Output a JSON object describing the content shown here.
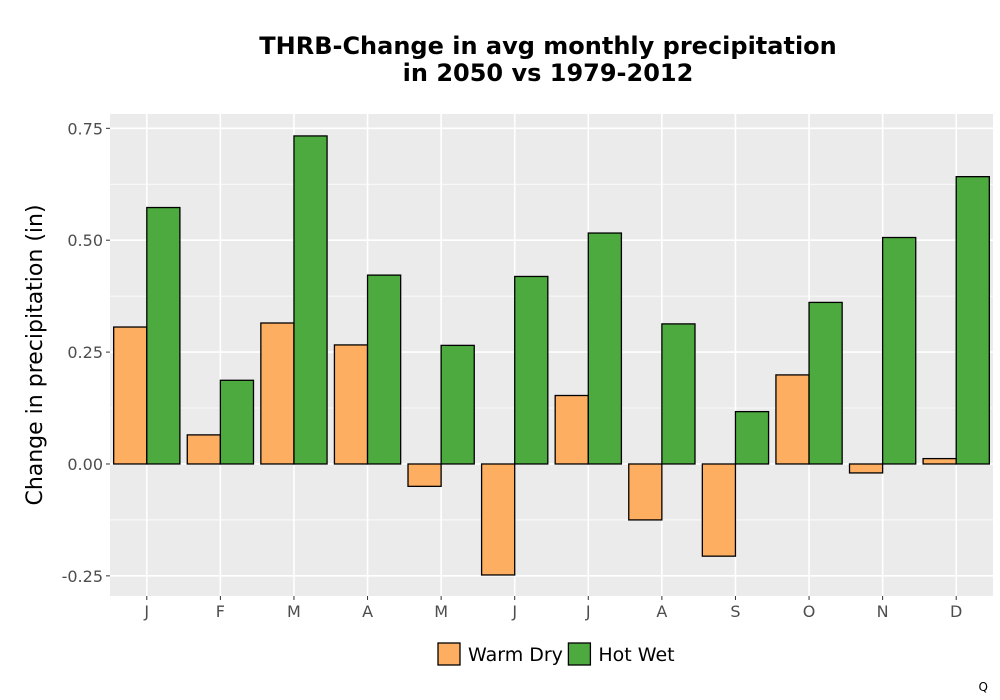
{
  "chart_data": {
    "type": "bar",
    "title_lines": [
      "THRB-Change in avg monthly precipitation",
      "in 2050 vs 1979-2012"
    ],
    "ylabel": "Change in precipitation (in)",
    "xlabel": "",
    "categories": [
      "J",
      "F",
      "M",
      "A",
      "M",
      "J",
      "J",
      "A",
      "S",
      "O",
      "N",
      "D"
    ],
    "series": [
      {
        "name": "Warm Dry",
        "color": "#fdae61",
        "values": [
          0.306,
          0.065,
          0.315,
          0.266,
          -0.05,
          -0.248,
          0.153,
          -0.125,
          -0.206,
          0.199,
          -0.02,
          0.012
        ]
      },
      {
        "name": "Hot Wet",
        "color": "#4daa3f",
        "values": [
          0.573,
          0.187,
          0.733,
          0.422,
          0.265,
          0.419,
          0.516,
          0.313,
          0.117,
          0.361,
          0.506,
          0.642
        ]
      }
    ],
    "ylim": [
      -0.295,
      0.782
    ],
    "yticks": [
      -0.25,
      0.0,
      0.25,
      0.5,
      0.75
    ],
    "ytick_labels": [
      "-0.25",
      "0.00",
      "0.25",
      "0.50",
      "0.75"
    ],
    "grid": true,
    "legend_position": "bottom"
  },
  "corner_mark": "Q"
}
